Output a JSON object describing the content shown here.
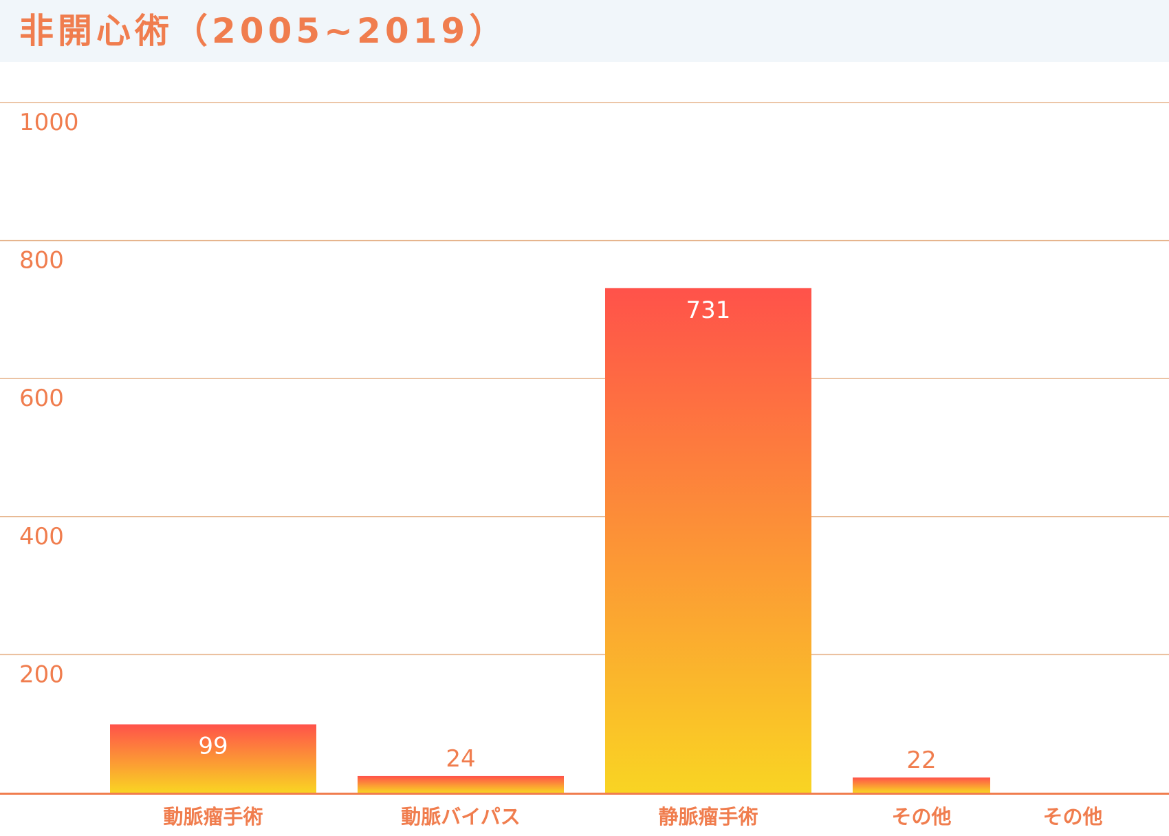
{
  "title": "非開心術（2005~2019）",
  "colors": {
    "accent": "#f07d4e",
    "gridline": "#e6b48c",
    "header_bg": "#f1f6fa",
    "bar_top": "#ff524a",
    "bar_bottom": "#f9d423",
    "label_inside": "#ffffff",
    "label_outside": "#f07d4e"
  },
  "chart_data": {
    "type": "bar",
    "title": "非開心術（2005~2019）",
    "categories": [
      "動脈瘤手術",
      "動脈バイパス",
      "静脈瘤手術",
      "その他",
      "その他"
    ],
    "values": [
      99,
      24,
      731,
      22,
      null
    ],
    "data_labels": [
      "99",
      "24",
      "731",
      "22",
      ""
    ],
    "ylim": [
      0,
      1000
    ],
    "yticks": [
      200,
      400,
      600,
      800,
      1000
    ],
    "grid": true,
    "legend": "none",
    "xlabel": "",
    "ylabel": ""
  }
}
